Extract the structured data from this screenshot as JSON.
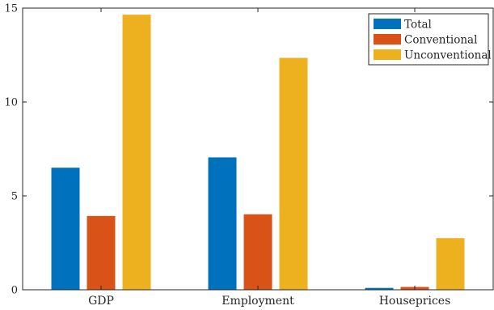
{
  "chart_data": {
    "type": "bar",
    "categories": [
      "GDP",
      "Employment",
      "Houseprices"
    ],
    "series": [
      {
        "name": "Total",
        "color": "#0072BD",
        "values": [
          6.5,
          7.05,
          0.1
        ]
      },
      {
        "name": "Conventional",
        "color": "#D95319",
        "values": [
          3.93,
          4.02,
          0.15
        ]
      },
      {
        "name": "Unconventional",
        "color": "#EDB120",
        "values": [
          14.65,
          12.35,
          2.75
        ]
      }
    ],
    "ylim": [
      0,
      15
    ],
    "yticks": [
      0,
      5,
      10,
      15
    ],
    "ytick_labels": [
      "0",
      "5",
      "10",
      "15"
    ],
    "grid": false,
    "legend_position": "top-right",
    "box": true
  }
}
